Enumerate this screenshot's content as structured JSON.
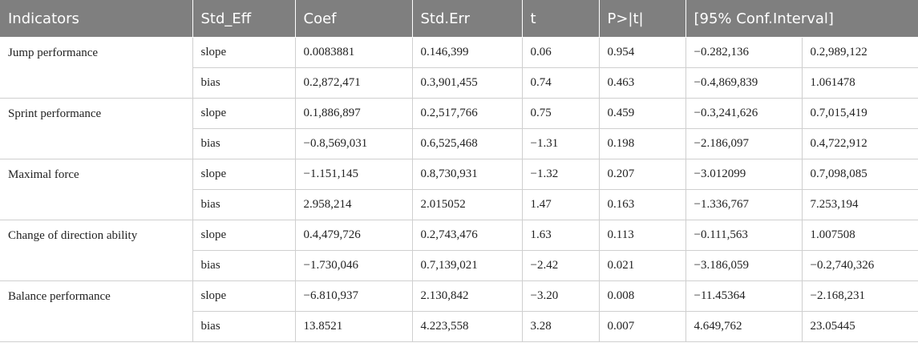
{
  "table": {
    "headers": [
      "Indicators",
      "Std_Eff",
      "Coef",
      "Std.Err",
      "t",
      "P>|t|",
      "[95% Conf.Interval]"
    ],
    "groups": [
      {
        "indicator": "Jump performance",
        "rows": [
          {
            "std_eff": "slope",
            "coef": "0.0083881",
            "std_err": "0.146,399",
            "t": "0.06",
            "p": "0.954",
            "ci_low": "−0.282,136",
            "ci_high": "0.2,989,122"
          },
          {
            "std_eff": "bias",
            "coef": "0.2,872,471",
            "std_err": "0.3,901,455",
            "t": "0.74",
            "p": "0.463",
            "ci_low": "−0.4,869,839",
            "ci_high": "1.061478"
          }
        ]
      },
      {
        "indicator": "Sprint performance",
        "rows": [
          {
            "std_eff": "slope",
            "coef": "0.1,886,897",
            "std_err": "0.2,517,766",
            "t": "0.75",
            "p": "0.459",
            "ci_low": "−0.3,241,626",
            "ci_high": "0.7,015,419"
          },
          {
            "std_eff": "bias",
            "coef": "−0.8,569,031",
            "std_err": "0.6,525,468",
            "t": "−1.31",
            "p": "0.198",
            "ci_low": "−2.186,097",
            "ci_high": "0.4,722,912"
          }
        ]
      },
      {
        "indicator": "Maximal force",
        "rows": [
          {
            "std_eff": "slope",
            "coef": "−1.151,145",
            "std_err": "0.8,730,931",
            "t": "−1.32",
            "p": "0.207",
            "ci_low": "−3.012099",
            "ci_high": "0.7,098,085"
          },
          {
            "std_eff": "bias",
            "coef": "2.958,214",
            "std_err": "2.015052",
            "t": "1.47",
            "p": "0.163",
            "ci_low": "−1.336,767",
            "ci_high": "7.253,194"
          }
        ]
      },
      {
        "indicator": "Change of direction ability",
        "rows": [
          {
            "std_eff": "slope",
            "coef": "0.4,479,726",
            "std_err": "0.2,743,476",
            "t": "1.63",
            "p": "0.113",
            "ci_low": "−0.111,563",
            "ci_high": "1.007508"
          },
          {
            "std_eff": "bias",
            "coef": "−1.730,046",
            "std_err": "0.7,139,021",
            "t": "−2.42",
            "p": "0.021",
            "ci_low": "−3.186,059",
            "ci_high": "−0.2,740,326"
          }
        ]
      },
      {
        "indicator": "Balance performance",
        "rows": [
          {
            "std_eff": "slope",
            "coef": "−6.810,937",
            "std_err": "2.130,842",
            "t": "−3.20",
            "p": "0.008",
            "ci_low": "−11.45364",
            "ci_high": "−2.168,231"
          },
          {
            "std_eff": "bias",
            "coef": "13.8521",
            "std_err": "4.223,558",
            "t": "3.28",
            "p": "0.007",
            "ci_low": "4.649,762",
            "ci_high": "23.05445"
          }
        ]
      }
    ]
  }
}
